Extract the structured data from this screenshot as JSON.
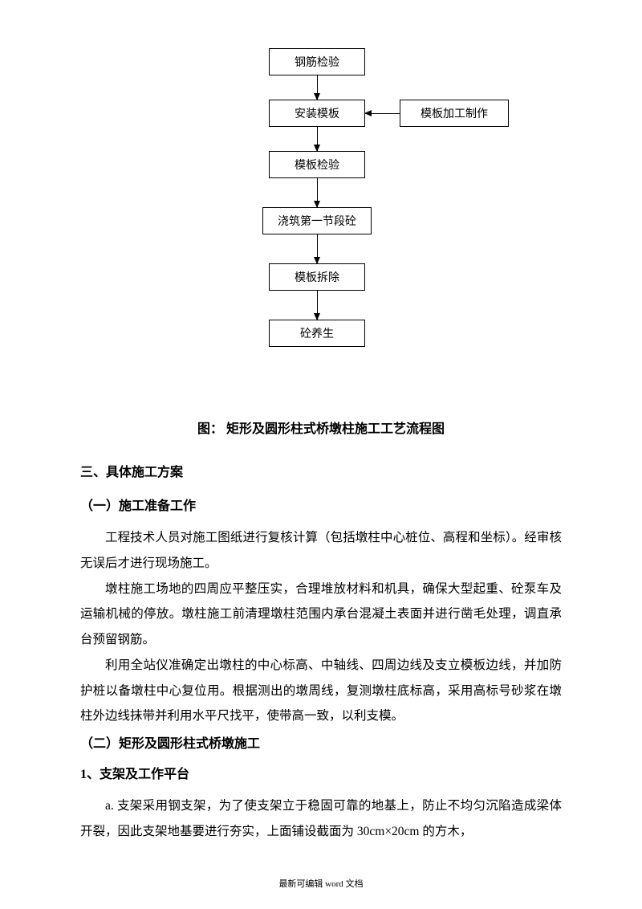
{
  "flowchart": {
    "nodes": {
      "b1": "钢筋检验",
      "b2": "安装模板",
      "b3": "模板检验",
      "b4": "浇筑第一节段砼",
      "b5": "模板拆除",
      "b6": "砼养生",
      "bs": "模板加工制作"
    },
    "node_border": "#000000",
    "node_bg": "#ffffff",
    "node_fontsize": 14,
    "arrow_color": "#000000"
  },
  "caption": "图：   矩形及圆形柱式桥墩柱施工工艺流程图",
  "section3": "三、具体施工方案",
  "sub1": {
    "title": "（一）施工准备工作",
    "p1": "工程技术人员对施工图纸进行复核计算（包括墩柱中心桩位、高程和坐标）。经审核无误后才进行现场施工。",
    "p2": "墩柱施工场地的四周应平整压实，合理堆放材料和机具，确保大型起重、砼泵车及运输机械的停放。墩柱施工前清理墩柱范围内承台混凝土表面并进行凿毛处理，调直承台预留钢筋。",
    "p3": "利用全站仪准确定出墩柱的中心标高、中轴线、四周边线及支立模板边线，并加防护桩以备墩柱中心复位用。根据测出的墩周线，复测墩柱底标高，采用高标号砂浆在墩柱外边线抹带并利用水平尺找平，使带高一致，以利支模。"
  },
  "sub2": {
    "title": "（二）矩形及圆形柱式桥墩施工",
    "h1": "1、支架及工作平台",
    "p1": "a. 支架采用钢支架，为了使支架立于稳固可靠的地基上，防止不均匀沉陷造成梁体开裂，因此支架地基要进行夯实，上面铺设截面为 30cm×20cm 的方木，"
  },
  "footer": "最新可编辑 word 文档"
}
